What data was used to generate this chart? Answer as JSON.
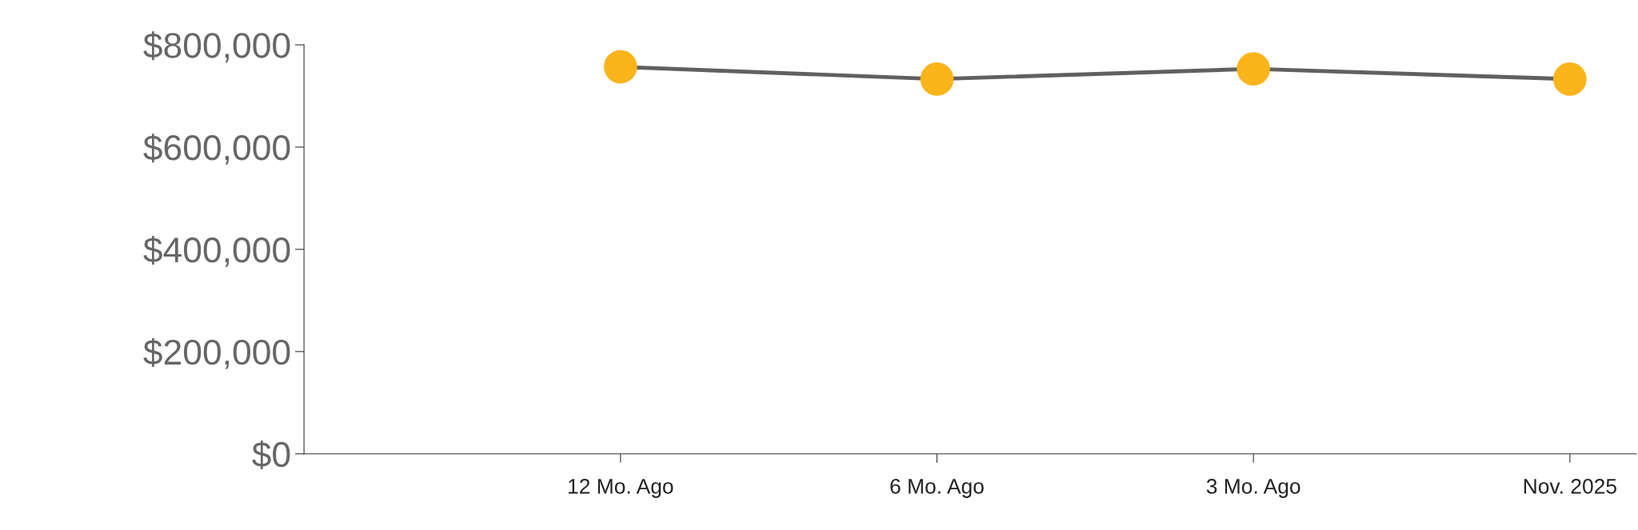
{
  "chart_data": {
    "type": "line",
    "categories": [
      "12 Mo. Ago",
      "6 Mo. Ago",
      "3 Mo. Ago",
      "Nov. 2025"
    ],
    "series": [
      {
        "color": "#606060",
        "colors": [
          "#fbb41a",
          "#fbb41a",
          "#fbb41a",
          "#fbb41a"
        ],
        "values": [
          757000,
          733000,
          753000,
          733000
        ]
      }
    ],
    "marker": "circle",
    "line_style": "solid",
    "ylim": [
      0,
      800000
    ],
    "yticks": [
      {
        "value": 0,
        "label": "$0"
      },
      {
        "value": 200000,
        "label": "$200,000"
      },
      {
        "value": 400000,
        "label": "$400,000"
      },
      {
        "value": 600000,
        "label": "$600,000"
      },
      {
        "value": 800000,
        "label": "$800,000"
      }
    ],
    "grid": false
  }
}
